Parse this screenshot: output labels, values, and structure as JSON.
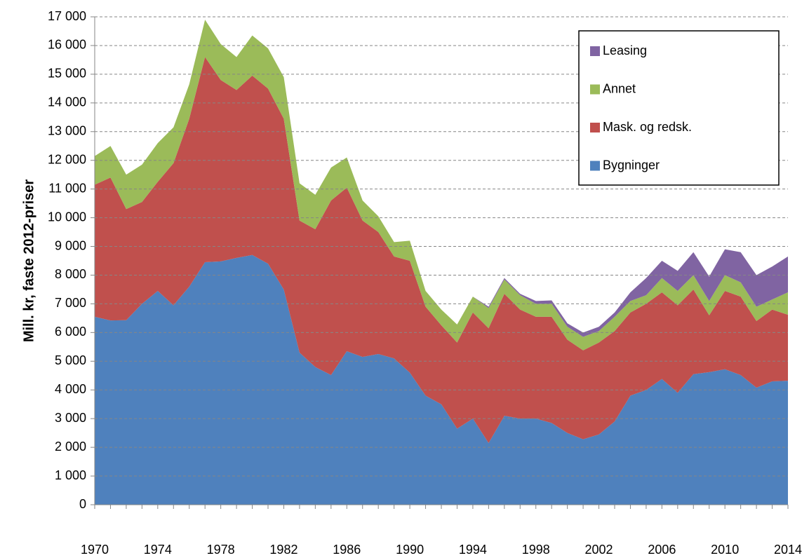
{
  "chart_data": {
    "type": "stacked_area",
    "ylabel": "Mill. kr, faste 2012-priser",
    "x": [
      1970,
      1971,
      1972,
      1973,
      1974,
      1975,
      1976,
      1977,
      1978,
      1979,
      1980,
      1981,
      1982,
      1983,
      1984,
      1985,
      1986,
      1987,
      1988,
      1989,
      1990,
      1991,
      1992,
      1993,
      1994,
      1995,
      1996,
      1997,
      1998,
      1999,
      2000,
      2001,
      2002,
      2003,
      2004,
      2005,
      2006,
      2007,
      2008,
      2009,
      2010,
      2011,
      2012,
      2013,
      2014
    ],
    "series": [
      {
        "name": "Bygninger",
        "color": "#4f81bd",
        "values": [
          6550,
          6420,
          6430,
          7000,
          7450,
          6950,
          7600,
          8450,
          8480,
          8600,
          8700,
          8400,
          7500,
          5300,
          4800,
          4520,
          5350,
          5150,
          5250,
          5100,
          4600,
          3800,
          3500,
          2650,
          3000,
          2150,
          3100,
          3000,
          3000,
          2850,
          2500,
          2280,
          2450,
          2900,
          3800,
          4000,
          4380,
          3900,
          4550,
          4620,
          4720,
          4520,
          4080,
          4300,
          4320
        ]
      },
      {
        "name": "Mask. og redsk.",
        "color": "#c0504d",
        "values": [
          4600,
          4980,
          3870,
          3550,
          3800,
          4950,
          5850,
          7150,
          6320,
          5850,
          6250,
          6100,
          5950,
          4600,
          4800,
          6080,
          5700,
          4750,
          4250,
          3550,
          3900,
          3100,
          2750,
          3000,
          3700,
          4000,
          4250,
          3800,
          3550,
          3700,
          3250,
          3100,
          3200,
          3150,
          2900,
          3000,
          3020,
          3050,
          2950,
          1980,
          2730,
          2730,
          2320,
          2500,
          2300
        ]
      },
      {
        "name": "Annet",
        "color": "#9bbb59",
        "values": [
          1000,
          1100,
          1200,
          1300,
          1350,
          1250,
          1200,
          1300,
          1250,
          1150,
          1400,
          1400,
          1450,
          1300,
          1200,
          1150,
          1050,
          700,
          550,
          500,
          700,
          550,
          550,
          630,
          550,
          700,
          500,
          500,
          450,
          450,
          450,
          470,
          400,
          500,
          400,
          300,
          500,
          500,
          500,
          500,
          550,
          500,
          500,
          350,
          780
        ]
      },
      {
        "name": "Leasing",
        "color": "#8064a2",
        "values": [
          0,
          0,
          0,
          0,
          0,
          0,
          0,
          0,
          0,
          0,
          0,
          0,
          0,
          0,
          0,
          0,
          0,
          0,
          0,
          0,
          0,
          0,
          0,
          0,
          0,
          50,
          50,
          50,
          100,
          120,
          120,
          150,
          150,
          150,
          300,
          600,
          600,
          700,
          800,
          850,
          900,
          1050,
          1100,
          1150,
          1250
        ]
      }
    ],
    "xlim": [
      1970,
      2014
    ],
    "xticks": [
      1970,
      1974,
      1978,
      1982,
      1986,
      1990,
      1994,
      1998,
      2002,
      2006,
      2010,
      2014
    ],
    "ylim": [
      0,
      17000
    ],
    "yticks": [
      0,
      {
        "value": 1000,
        "label": "1 000"
      },
      {
        "value": 2000,
        "label": "2 000"
      },
      {
        "value": 3000,
        "label": "3 000"
      },
      {
        "value": 4000,
        "label": "4 000"
      },
      {
        "value": 5000,
        "label": "5 000"
      },
      {
        "value": 6000,
        "label": "6 000"
      },
      {
        "value": 7000,
        "label": "7 000"
      },
      {
        "value": 8000,
        "label": "8 000"
      },
      {
        "value": 9000,
        "label": "9 000"
      },
      {
        "value": 10000,
        "label": "10 000"
      },
      {
        "value": 11000,
        "label": "11 000"
      },
      {
        "value": 12000,
        "label": "12 000"
      },
      {
        "value": 13000,
        "label": "13 000"
      },
      {
        "value": 14000,
        "label": "14 000"
      },
      {
        "value": 15000,
        "label": "15 000"
      },
      {
        "value": 16000,
        "label": "16 000"
      },
      {
        "value": 17000,
        "label": "17 000"
      }
    ],
    "grid": true,
    "legend": "upper right"
  }
}
